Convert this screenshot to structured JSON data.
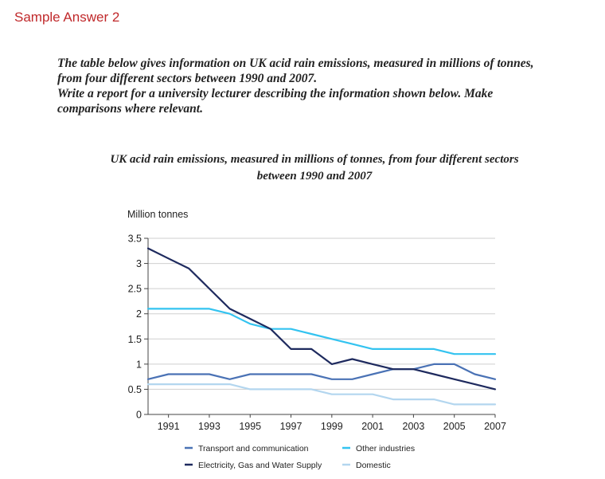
{
  "page": {
    "heading": "Sample Answer 2",
    "prompt_line1": "The table below gives information on UK acid rain emissions, measured in millions of tonnes,",
    "prompt_line2": "from four different sectors between 1990 and 2007.",
    "prompt_line3": "Write a report for a university lecturer describing the information shown below. Make",
    "prompt_line4": "comparisons where relevant."
  },
  "chart_data": {
    "type": "line",
    "title_line1": "UK acid rain emissions, measured in millions of tonnes, from four different sectors",
    "title_line2": "between 1990 and 2007",
    "ylabel": "Million tonnes",
    "xlabel": "",
    "ylim": [
      0,
      3.5
    ],
    "xlim": [
      1990,
      2007
    ],
    "grid": true,
    "x": [
      1990,
      1991,
      1992,
      1993,
      1994,
      1995,
      1996,
      1997,
      1998,
      1999,
      2000,
      2001,
      2002,
      2003,
      2004,
      2005,
      2006,
      2007
    ],
    "x_ticks": [
      "1991",
      "1993",
      "1995",
      "1997",
      "1999",
      "2001",
      "2003",
      "2005",
      "2007"
    ],
    "y_ticks": [
      "0",
      "0.5",
      "1",
      "1.5",
      "2",
      "2.5",
      "3",
      "3.5"
    ],
    "legend_position": "bottom",
    "series": [
      {
        "name": "Transport and communication",
        "color": "#4a72b5",
        "values": [
          0.7,
          0.8,
          0.8,
          0.8,
          0.7,
          0.8,
          0.8,
          0.8,
          0.8,
          0.7,
          0.7,
          0.8,
          0.9,
          0.9,
          1.0,
          1.0,
          0.8,
          0.7
        ]
      },
      {
        "name": "Other industries",
        "color": "#33c3f0",
        "values": [
          2.1,
          2.1,
          2.1,
          2.1,
          2.0,
          1.8,
          1.7,
          1.7,
          1.6,
          1.5,
          1.4,
          1.3,
          1.3,
          1.3,
          1.3,
          1.2,
          1.2,
          1.2
        ]
      },
      {
        "name": "Electricity, Gas and Water Supply",
        "color": "#1e2a5e",
        "values": [
          3.3,
          3.1,
          2.9,
          2.5,
          2.1,
          1.9,
          1.7,
          1.3,
          1.3,
          1.0,
          1.1,
          1.0,
          0.9,
          0.9,
          0.8,
          0.7,
          0.6,
          0.5
        ]
      },
      {
        "name": "Domestic",
        "color": "#b3d6ef",
        "values": [
          0.6,
          0.6,
          0.6,
          0.6,
          0.6,
          0.5,
          0.5,
          0.5,
          0.5,
          0.4,
          0.4,
          0.4,
          0.3,
          0.3,
          0.3,
          0.2,
          0.2,
          0.2
        ]
      }
    ]
  }
}
